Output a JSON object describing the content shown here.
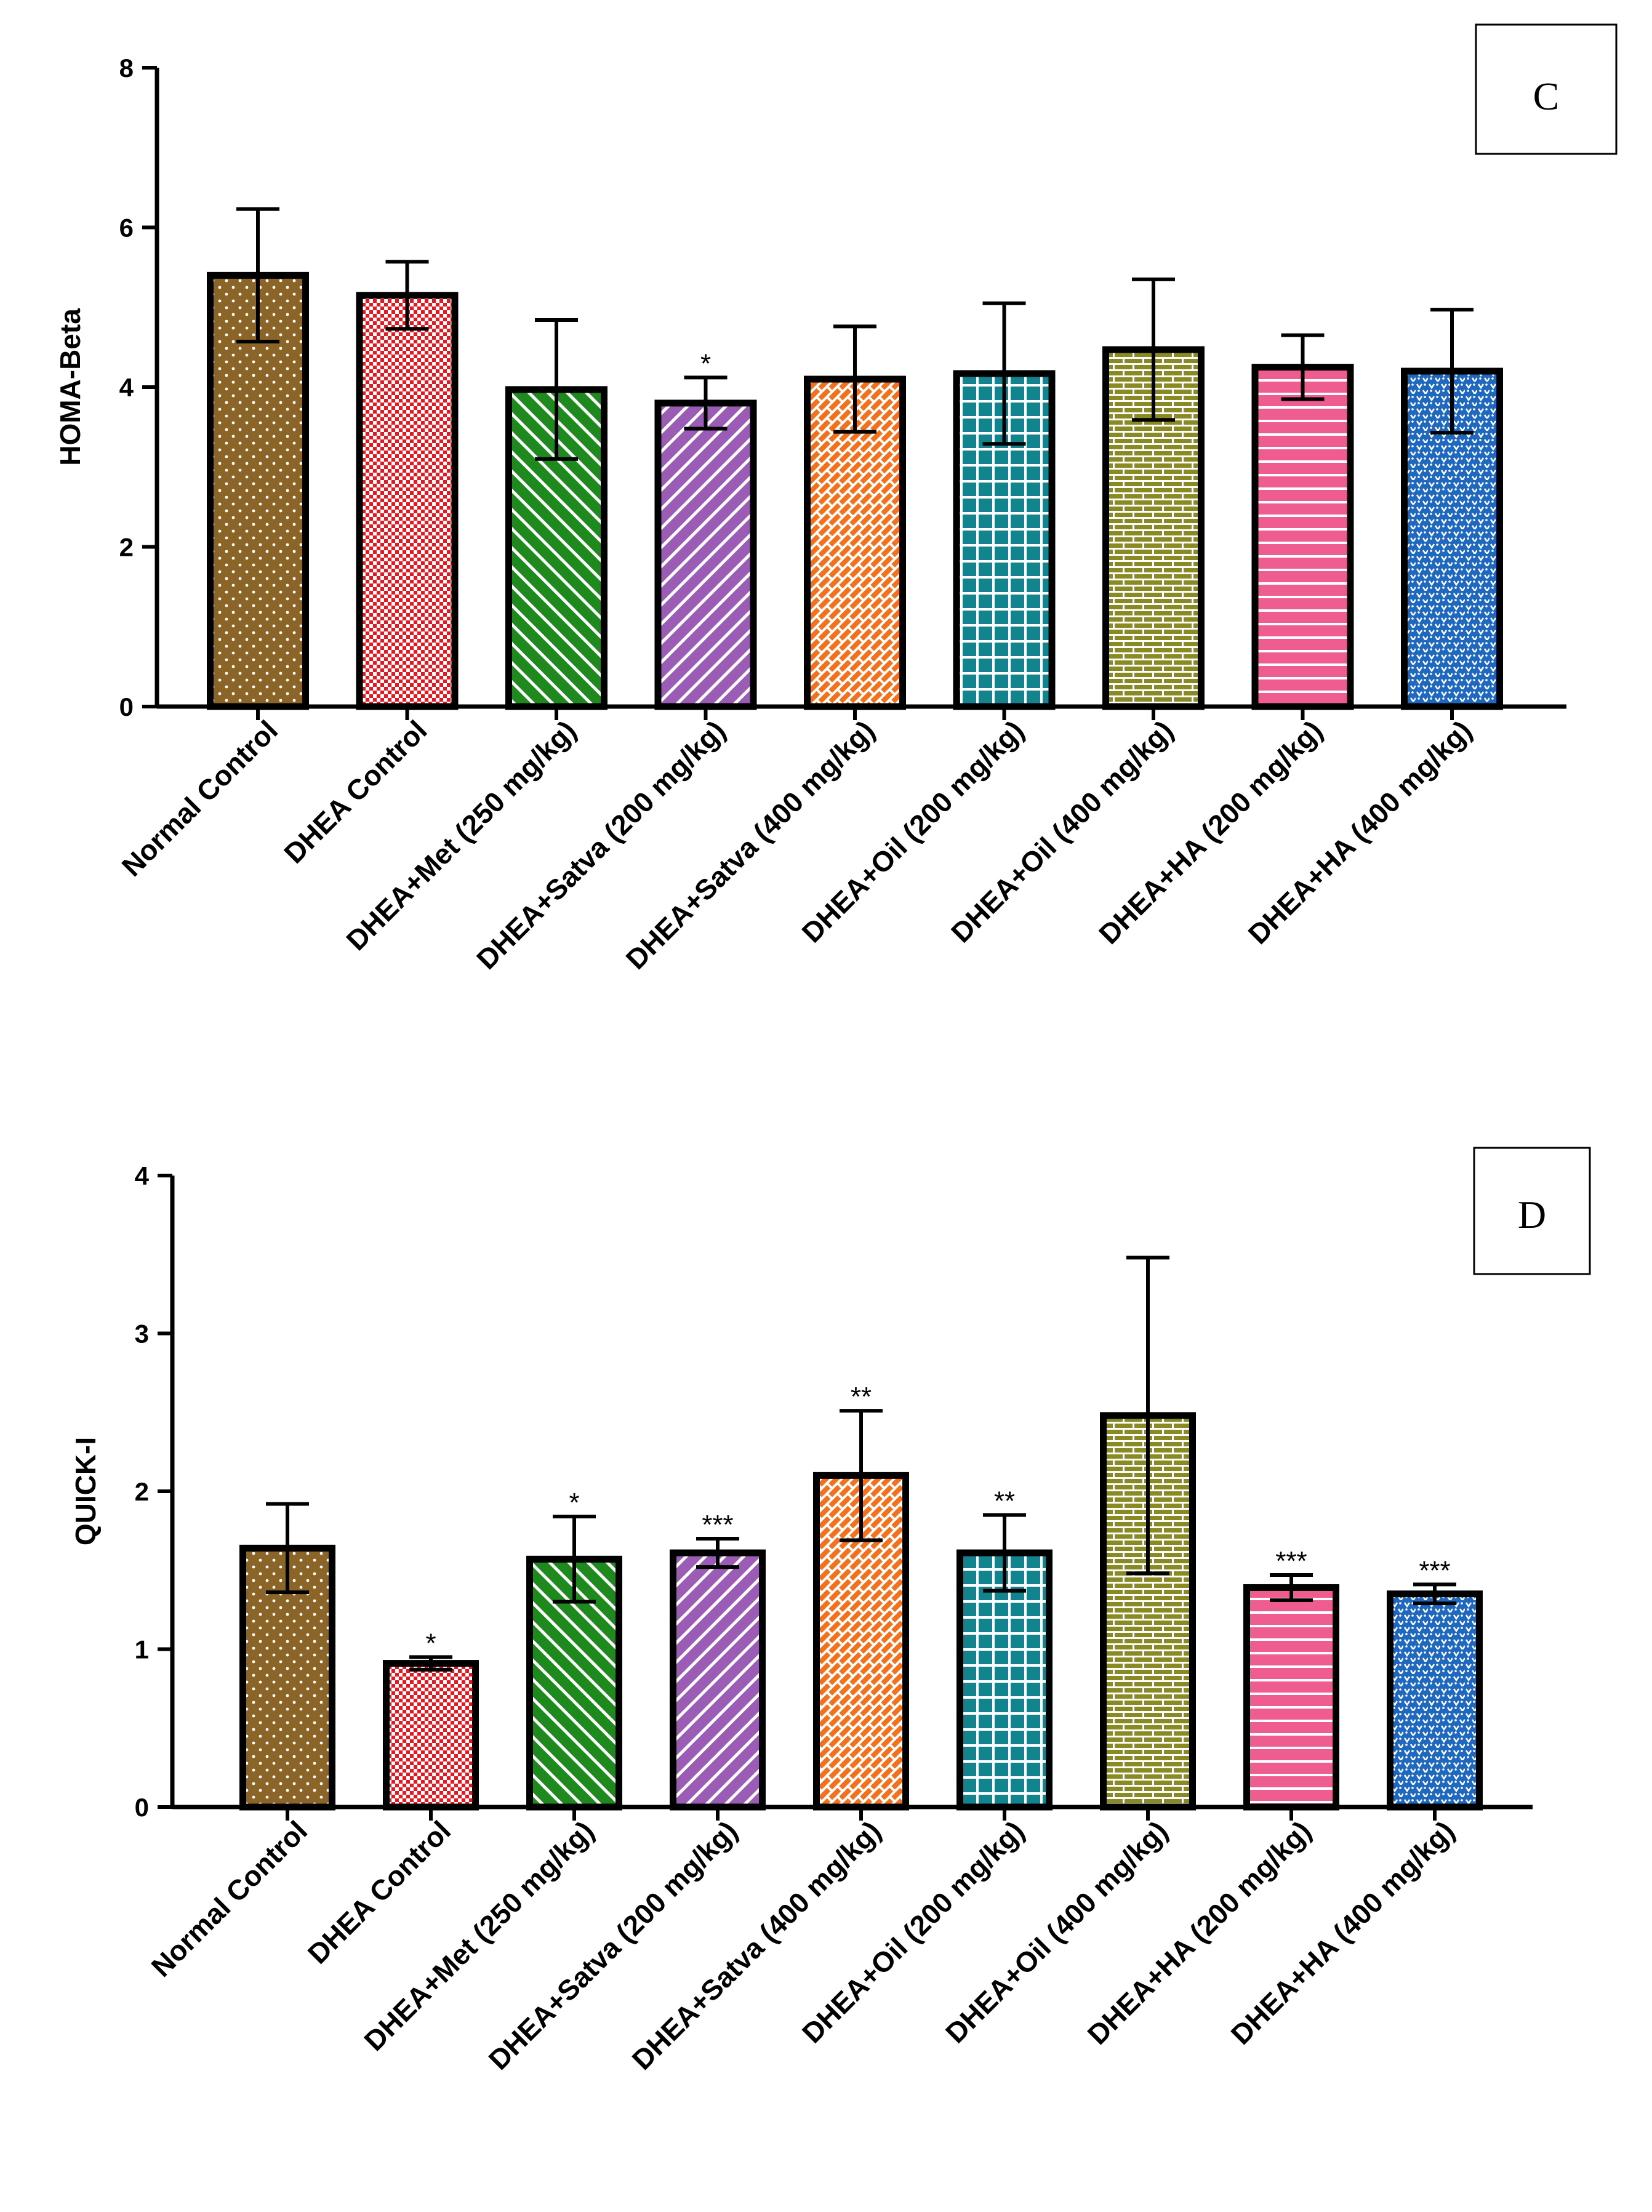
{
  "chart_data": [
    {
      "type": "bar",
      "panel": "C",
      "ylabel": "HOMA-Beta",
      "ylim": [
        0,
        8
      ],
      "yticks": [
        "0",
        "2",
        "4",
        "6",
        "8"
      ],
      "categories": [
        "Normal Control",
        "DHEA Control",
        "DHEA+Met (250 mg/kg)",
        "DHEA+Satva (200 mg/kg)",
        "DHEA+Satva (400 mg/kg)",
        "DHEA+Oil (200 mg/kg)",
        "DHEA+Oil (400 mg/kg)",
        "DHEA+HA (200 mg/kg)",
        "DHEA+HA (400 mg/kg)"
      ],
      "values": [
        5.4,
        5.15,
        3.97,
        3.8,
        4.1,
        4.17,
        4.47,
        4.25,
        4.2
      ],
      "errors": [
        0.83,
        0.42,
        0.87,
        0.32,
        0.66,
        0.88,
        0.88,
        0.4,
        0.77
      ],
      "significance": [
        "",
        "",
        "",
        "*",
        "",
        "",
        "",
        "",
        ""
      ],
      "grid": false,
      "legend": "none"
    },
    {
      "type": "bar",
      "panel": "D",
      "ylabel": "QUICK-I",
      "ylim": [
        0,
        4
      ],
      "yticks": [
        "0",
        "1",
        "2",
        "3",
        "4"
      ],
      "categories": [
        "Normal Control",
        "DHEA Control",
        "DHEA+Met (250 mg/kg)",
        "DHEA+Satva (200 mg/kg)",
        "DHEA+Satva (400 mg/kg)",
        "DHEA+Oil (200 mg/kg)",
        "DHEA+Oil (400 mg/kg)",
        "DHEA+HA (200 mg/kg)",
        "DHEA+HA (400 mg/kg)"
      ],
      "values": [
        1.64,
        0.91,
        1.57,
        1.61,
        2.1,
        1.61,
        2.48,
        1.39,
        1.35
      ],
      "errors": [
        0.28,
        0.04,
        0.27,
        0.09,
        0.41,
        0.24,
        1.0,
        0.08,
        0.06
      ],
      "significance": [
        "",
        "*",
        "*",
        "***",
        "**",
        "**",
        "",
        "***",
        "***"
      ],
      "grid": false,
      "legend": "none"
    }
  ],
  "bar_styles": [
    {
      "fill": "#8b6428",
      "pattern": "dots",
      "stroke": "#ffffff"
    },
    {
      "fill": "#ffffff",
      "pattern": "checker",
      "stroke": "#e8161e"
    },
    {
      "fill": "#1e8a1e",
      "pattern": "diagonal",
      "stroke": "#ffffff"
    },
    {
      "fill": "#9a5cb4",
      "pattern": "diagonal",
      "stroke": "#ffffff"
    },
    {
      "fill": "#f5701a",
      "pattern": "bricks",
      "stroke": "#ffffff"
    },
    {
      "fill": "#13848e",
      "pattern": "grid",
      "stroke": "#ffffff"
    },
    {
      "fill": "#8a8a22",
      "pattern": "hbricks",
      "stroke": "#ffffff"
    },
    {
      "fill": "#ef5c90",
      "pattern": "hlines",
      "stroke": "#ffffff"
    },
    {
      "fill": "#1f68c0",
      "pattern": "weave",
      "stroke": "#ffffff"
    }
  ]
}
